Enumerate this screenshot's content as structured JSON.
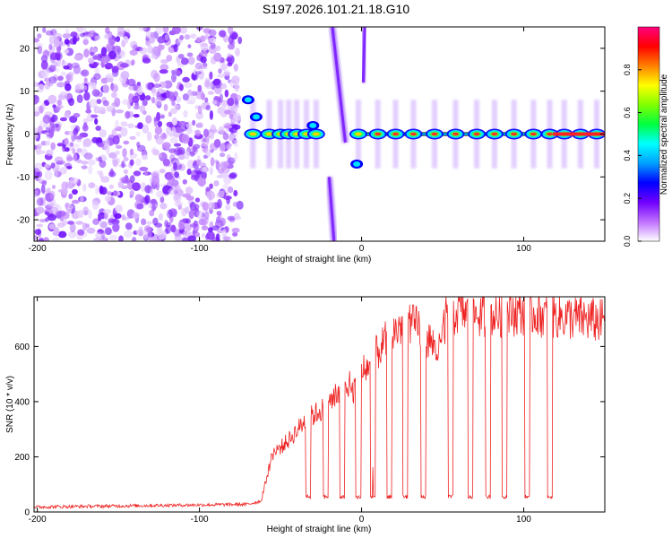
{
  "title": "S197.2026.101.21.18.G10",
  "chart_data": [
    {
      "type": "heatmap",
      "name": "spectrogram",
      "xlabel": "Height of straight line (km)",
      "ylabel": "Frequency (Hz)",
      "xlim": [
        -202,
        150
      ],
      "ylim": [
        -25,
        25
      ],
      "xticks": [
        -200,
        -100,
        0,
        100
      ],
      "xtick_labels": [
        "-200",
        "-100",
        "0",
        "100"
      ],
      "yticks": [
        -20,
        -10,
        0,
        10,
        20
      ],
      "ytick_labels": [
        "-20",
        "-10",
        "0",
        "10",
        "20"
      ],
      "colorbar": {
        "label": "Normalized spectral amplitude",
        "range": [
          0,
          1
        ],
        "ticks": [
          0,
          0.2,
          0.4,
          0.6,
          0.8
        ],
        "tick_labels": [
          "0.0",
          "0.2",
          "0.4",
          "0.6",
          "0.8"
        ],
        "colors": [
          "#ffffff",
          "#c070ff",
          "#7000ff",
          "#0000ff",
          "#00a0ff",
          "#00ffff",
          "#00ff40",
          "#80ff00",
          "#ffff00",
          "#ff8000",
          "#ff0000",
          "#ff0080"
        ]
      },
      "noise_region_x": [
        -202,
        -75
      ],
      "band_centers_x": [
        -67,
        -57,
        -50,
        -45,
        -40,
        -34,
        -28,
        -2,
        10,
        21,
        32,
        45,
        58,
        71,
        82,
        94,
        106,
        116,
        125,
        135,
        145
      ],
      "band_frequency": 0,
      "crossing_lines": [
        {
          "x_top": -18,
          "y_top": 25,
          "x_bottom": -10,
          "y_bottom": -2
        },
        {
          "x_top": -20,
          "y_top": -10,
          "x_bottom": -17,
          "y_bottom": -25
        },
        {
          "x_top": 2,
          "y_top": 25,
          "x_bottom": 1,
          "y_bottom": 12
        }
      ],
      "blob_points": [
        {
          "x": -70,
          "y": 8
        },
        {
          "x": -65,
          "y": 4
        },
        {
          "x": -3,
          "y": -7
        },
        {
          "x": -30,
          "y": 2
        }
      ]
    },
    {
      "type": "line",
      "name": "snr",
      "xlabel": "Height of straight line (km)",
      "ylabel": "SNR (10 * v/v)",
      "xlim": [
        -202,
        150
      ],
      "ylim": [
        0,
        780
      ],
      "xticks": [
        -200,
        -100,
        0,
        100
      ],
      "xtick_labels": [
        "-200",
        "-100",
        "0",
        "100"
      ],
      "yticks": [
        0,
        200,
        400,
        600
      ],
      "ytick_labels": [
        "0",
        "200",
        "400",
        "600"
      ],
      "color": "#ee2222",
      "envelope_x": [
        -202,
        -70,
        -62,
        -55,
        -45,
        -35,
        -25,
        -15,
        -5,
        5,
        15,
        25,
        35,
        48,
        52,
        60,
        75,
        100,
        150
      ],
      "envelope_y": [
        18,
        28,
        40,
        210,
        260,
        330,
        370,
        420,
        440,
        540,
        620,
        680,
        670,
        580,
        700,
        730,
        710,
        725,
        690
      ],
      "dropouts_x": [
        -33,
        -22,
        -12,
        -2,
        7,
        17,
        27,
        38,
        55,
        67,
        78,
        88,
        102,
        116
      ],
      "dropout_level": 55
    }
  ]
}
